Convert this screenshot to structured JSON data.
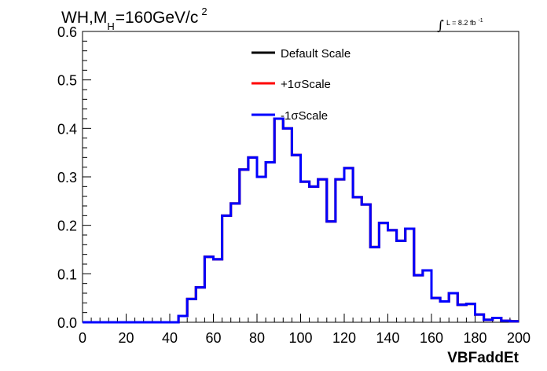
{
  "chart_data": {
    "type": "histogram",
    "title": {
      "main": "WH,M",
      "sub": "H",
      "rest": "=160GeV/c",
      "sup": "2"
    },
    "xlabel": "VBFaddEt",
    "ylabel": "",
    "xlim": [
      0,
      200
    ],
    "ylim": [
      0,
      0.6
    ],
    "x_ticks": [
      "0",
      "20",
      "40",
      "60",
      "80",
      "100",
      "120",
      "140",
      "160",
      "180",
      "200"
    ],
    "y_ticks": [
      "0.0",
      "0.1",
      "0.2",
      "0.3",
      "0.4",
      "0.5",
      "0.6"
    ],
    "grid": false,
    "legend_position": "top-center",
    "luminosity": {
      "symbol": "∫",
      "text": "L = 8.2 fb",
      "sup": "-1"
    },
    "bin_width": 4,
    "bin_edges_start": 0,
    "series": [
      {
        "name": "Default Scale",
        "color": "#000000",
        "values": [
          0,
          0,
          0,
          0,
          0,
          0,
          0,
          0,
          0,
          0,
          0,
          0.013,
          0.048,
          0.072,
          0.135,
          0.13,
          0.22,
          0.245,
          0.315,
          0.34,
          0.3,
          0.33,
          0.42,
          0.4,
          0.345,
          0.29,
          0.28,
          0.295,
          0.208,
          0.295,
          0.318,
          0.258,
          0.243,
          0.155,
          0.205,
          0.19,
          0.168,
          0.193,
          0.097,
          0.107,
          0.05,
          0.043,
          0.06,
          0.036,
          0.038,
          0.016,
          0.005,
          0.009,
          0.003,
          0.002
        ]
      },
      {
        "name": "+1σScale",
        "color": "#ff0000",
        "values": [
          0,
          0,
          0,
          0,
          0,
          0,
          0,
          0,
          0,
          0,
          0,
          0.013,
          0.048,
          0.072,
          0.135,
          0.13,
          0.22,
          0.245,
          0.315,
          0.34,
          0.3,
          0.33,
          0.42,
          0.4,
          0.345,
          0.29,
          0.28,
          0.295,
          0.208,
          0.295,
          0.318,
          0.258,
          0.243,
          0.155,
          0.205,
          0.19,
          0.168,
          0.193,
          0.097,
          0.107,
          0.05,
          0.043,
          0.06,
          0.036,
          0.038,
          0.016,
          0.005,
          0.009,
          0.003,
          0.002
        ]
      },
      {
        "name": "-1σScale",
        "color": "#0000ff",
        "values": [
          0,
          0,
          0,
          0,
          0,
          0,
          0,
          0,
          0,
          0,
          0,
          0.013,
          0.048,
          0.072,
          0.135,
          0.13,
          0.22,
          0.245,
          0.315,
          0.34,
          0.3,
          0.33,
          0.42,
          0.4,
          0.345,
          0.29,
          0.28,
          0.295,
          0.208,
          0.295,
          0.318,
          0.258,
          0.243,
          0.155,
          0.205,
          0.19,
          0.168,
          0.193,
          0.097,
          0.107,
          0.05,
          0.043,
          0.06,
          0.036,
          0.038,
          0.016,
          0.005,
          0.009,
          0.003,
          0.002
        ]
      }
    ]
  }
}
